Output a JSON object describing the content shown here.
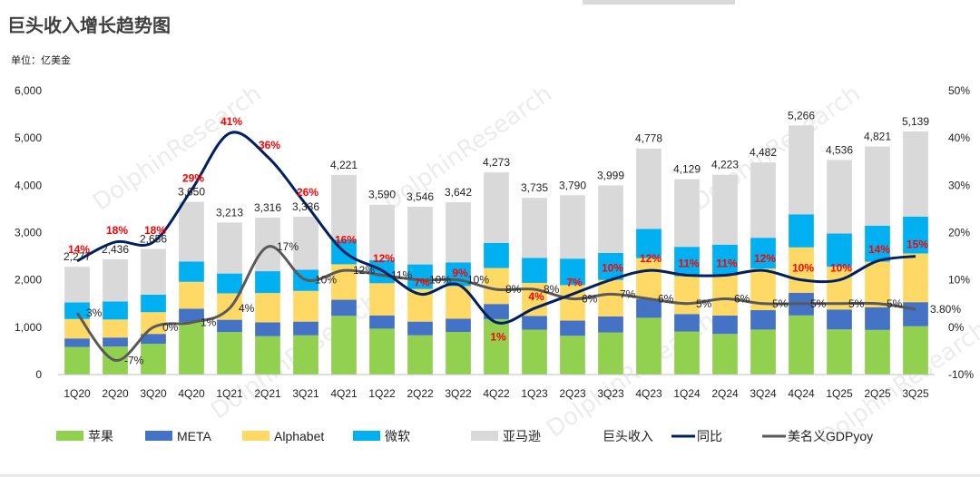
{
  "title": "巨头收入增长趋势图",
  "unit_label": "单位：亿美金",
  "watermark": "DolphinResearch",
  "chart_data": {
    "type": "bar",
    "stacked": true,
    "title": "巨头收入增长趋势图",
    "categories": [
      "1Q20",
      "2Q20",
      "3Q20",
      "4Q20",
      "1Q21",
      "2Q21",
      "3Q21",
      "4Q21",
      "1Q22",
      "2Q22",
      "3Q22",
      "4Q22",
      "1Q23",
      "2Q23",
      "3Q23",
      "4Q23",
      "1Q24",
      "2Q24",
      "3Q24",
      "4Q24",
      "1Q25",
      "2Q25",
      "3Q25"
    ],
    "y_left": {
      "min": 0,
      "max": 6000,
      "step": 1000
    },
    "y_right": {
      "min": -10,
      "max": 50,
      "step": 10,
      "suffix": "%"
    },
    "series": [
      {
        "name": "苹果",
        "color": "#92d050",
        "values": [
          580,
          590,
          650,
          1110,
          900,
          810,
          830,
          1240,
          970,
          830,
          900,
          1170,
          950,
          820,
          890,
          1200,
          910,
          860,
          950,
          1250,
          950,
          940,
          1020
        ]
      },
      {
        "name": "META",
        "color": "#4472c4",
        "values": [
          180,
          190,
          210,
          280,
          260,
          290,
          290,
          340,
          280,
          290,
          280,
          320,
          290,
          320,
          340,
          400,
          370,
          390,
          410,
          480,
          420,
          480,
          510
        ]
      },
      {
        "name": "Alphabet",
        "color": "#ffd966",
        "values": [
          410,
          380,
          460,
          570,
          560,
          620,
          650,
          750,
          680,
          690,
          690,
          760,
          700,
          750,
          770,
          860,
          800,
          850,
          880,
          960,
          900,
          960,
          1030
        ]
      },
      {
        "name": "微软",
        "color": "#00b0f0",
        "values": [
          350,
          380,
          370,
          430,
          420,
          460,
          450,
          520,
          490,
          520,
          500,
          530,
          530,
          560,
          570,
          620,
          620,
          650,
          650,
          700,
          700,
          760,
          780
        ]
      },
      {
        "name": "亚马逊",
        "color": "#d9d9d9",
        "values": [
          750,
          890,
          970,
          1260,
          1080,
          1130,
          1120,
          1370,
          1170,
          1220,
          1270,
          1490,
          1270,
          1340,
          1430,
          1700,
          1430,
          1480,
          1590,
          1880,
          1550,
          1670,
          1800
        ]
      }
    ],
    "totals": {
      "name": "巨头收入",
      "values": [
        2277,
        2436,
        2656,
        3650,
        3213,
        3316,
        3336,
        4221,
        3590,
        3546,
        3642,
        4273,
        3735,
        3790,
        3999,
        4778,
        4129,
        4223,
        4482,
        5266,
        4536,
        4821,
        5139
      ]
    },
    "total_labels": [
      "2,277",
      "2,436",
      "2,656",
      "3,650",
      "3,213",
      "3,316",
      "3,336",
      "4,221",
      "3,590",
      "3,546",
      "3,642",
      "4,273",
      "3,735",
      "3,790",
      "3,999",
      "4,778",
      "4,129",
      "4,223",
      "4,482",
      "5,266",
      "4,536",
      "4,821",
      "5,139"
    ],
    "yoy": {
      "name": "同比",
      "color": "#002060",
      "values": [
        14,
        18,
        18,
        29,
        41,
        36,
        26,
        16,
        12,
        7,
        9,
        1,
        4,
        7,
        10,
        12,
        11,
        11,
        12,
        10,
        10,
        14,
        15
      ],
      "labels": [
        "14%",
        "18%",
        "18%",
        "29%",
        "41%",
        "36%",
        "26%",
        "16%",
        "12%",
        "7%",
        "9%",
        "1%",
        "4%",
        "7%",
        "10%",
        "12%",
        "11%",
        "11%",
        "12%",
        "10%",
        "10%",
        "14%",
        "15%"
      ]
    },
    "gdp": {
      "name": "美名义GDPyoy",
      "color": "#595959",
      "values": [
        3,
        -7,
        0,
        1,
        4,
        17,
        10,
        12,
        11,
        10,
        10,
        8,
        8,
        6,
        7,
        6,
        5,
        6,
        5,
        5,
        5,
        5,
        3.8
      ],
      "labels": [
        "3%",
        "-7%",
        "0%",
        "1%",
        "4%",
        "17%",
        "10%",
        "12%",
        "11%",
        "10%",
        "10%",
        "8%",
        "8%",
        "6%",
        "7%",
        "6%",
        "5%",
        "6%",
        "5%",
        "5%",
        "5%",
        "5%",
        "3.80%"
      ]
    },
    "legend": [
      "苹果",
      "META",
      "Alphabet",
      "微软",
      "亚马逊",
      "巨头收入",
      "同比",
      "美名义GDPyoy"
    ],
    "legend_position": "bottom",
    "grid": false
  }
}
